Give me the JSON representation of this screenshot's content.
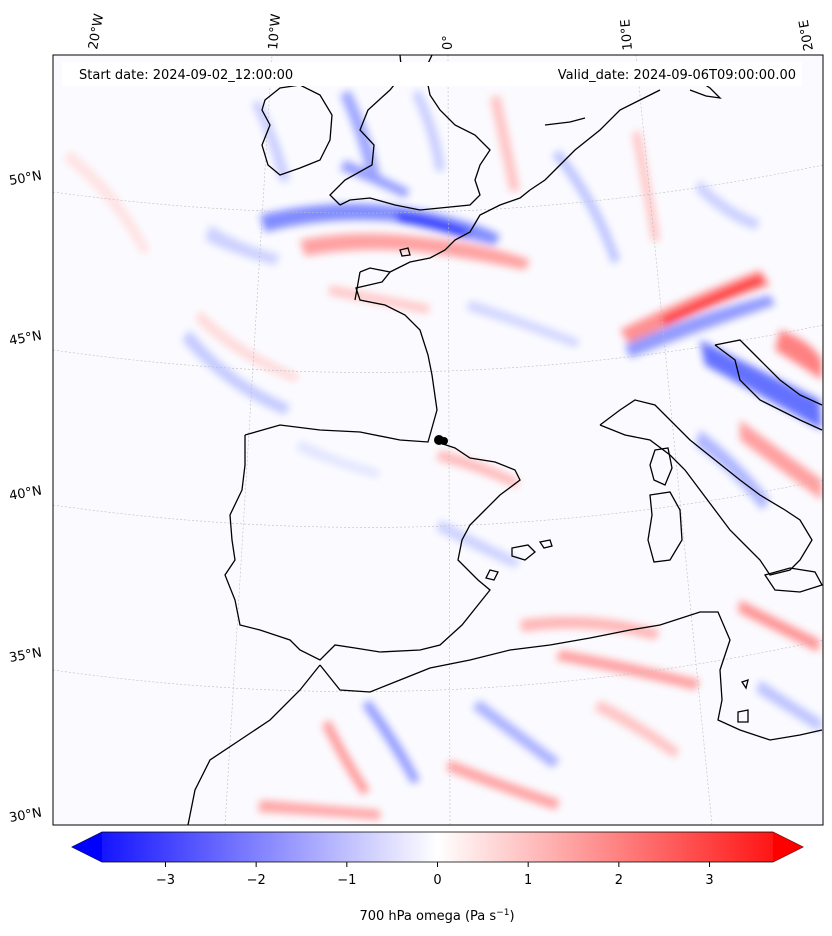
{
  "header": {
    "start_date": "Start date: 2024-09-02_12:00:00",
    "valid_date": "Valid_date: 2024-09-06T09:00:00.00"
  },
  "map": {
    "projection": "lambert-conformal",
    "extent_lon": [
      -20,
      20
    ],
    "extent_lat": [
      30,
      55
    ],
    "lon_labels": [
      "20°W",
      "10°W",
      "0°",
      "10°E",
      "20°E"
    ],
    "lat_labels": [
      "50°N",
      "45°N",
      "40°N",
      "35°N",
      "30°N"
    ],
    "gridlines": true,
    "coastline_color": "#000000",
    "marker": {
      "label": "point",
      "lon": -0.1,
      "lat": 42.1,
      "color": "#000000"
    }
  },
  "colorbar": {
    "label_text": "700 hPa omega (Pa s",
    "label_sup": "−1",
    "label_close": ")",
    "ticks": [
      "−3",
      "−2",
      "−1",
      "0",
      "1",
      "2",
      "3"
    ],
    "range": [
      -3.7,
      3.7
    ],
    "extend": "both",
    "colormap": "bwr",
    "low_color": "#0000ff",
    "mid_color": "#ffffff",
    "high_color": "#ff0000"
  }
}
